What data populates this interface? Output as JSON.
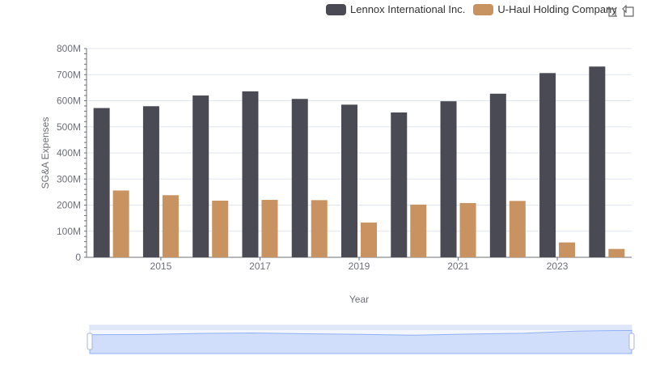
{
  "legend": {
    "items": [
      {
        "label": "Lennox International Inc.",
        "color": "#4a4a55"
      },
      {
        "label": "U-Haul Holding Company",
        "color": "#c89360"
      }
    ]
  },
  "toolbox": {
    "icons": [
      "restore-icon",
      "zoom-icon",
      "back-icon"
    ]
  },
  "chart_data": {
    "type": "bar",
    "categories": [
      "2014",
      "2015",
      "2016",
      "2017",
      "2018",
      "2019",
      "2020",
      "2021",
      "2022",
      "2023",
      "2024"
    ],
    "x_tick_labels": [
      "2015",
      "2017",
      "2019",
      "2021",
      "2023"
    ],
    "series": [
      {
        "name": "Lennox International Inc.",
        "color": "#4a4a55",
        "values": [
          572,
          579,
          620,
          636,
          607,
          585,
          555,
          598,
          627,
          706,
          731
        ]
      },
      {
        "name": "U-Haul Holding Company",
        "color": "#c89360",
        "values": [
          256,
          238,
          217,
          220,
          219,
          133,
          202,
          208,
          216,
          57,
          32
        ]
      }
    ],
    "xlabel": "Year",
    "ylabel": "SG&A Expenses",
    "ylim": [
      0,
      800
    ],
    "yticks": [
      {
        "value": 0,
        "label": "0"
      },
      {
        "value": 100,
        "label": "100M"
      },
      {
        "value": 200,
        "label": "200M"
      },
      {
        "value": 300,
        "label": "300M"
      },
      {
        "value": 400,
        "label": "400M"
      },
      {
        "value": 500,
        "label": "500M"
      },
      {
        "value": 600,
        "label": "600M"
      },
      {
        "value": 700,
        "label": "700M"
      },
      {
        "value": 800,
        "label": "800M"
      }
    ],
    "grid": true,
    "legend_position": "top-right",
    "colors": {
      "grid": "#e0e6f1",
      "axis": "#6e7079",
      "slider": "#d2dbee",
      "slider_fill": "#8fb0f7"
    }
  }
}
